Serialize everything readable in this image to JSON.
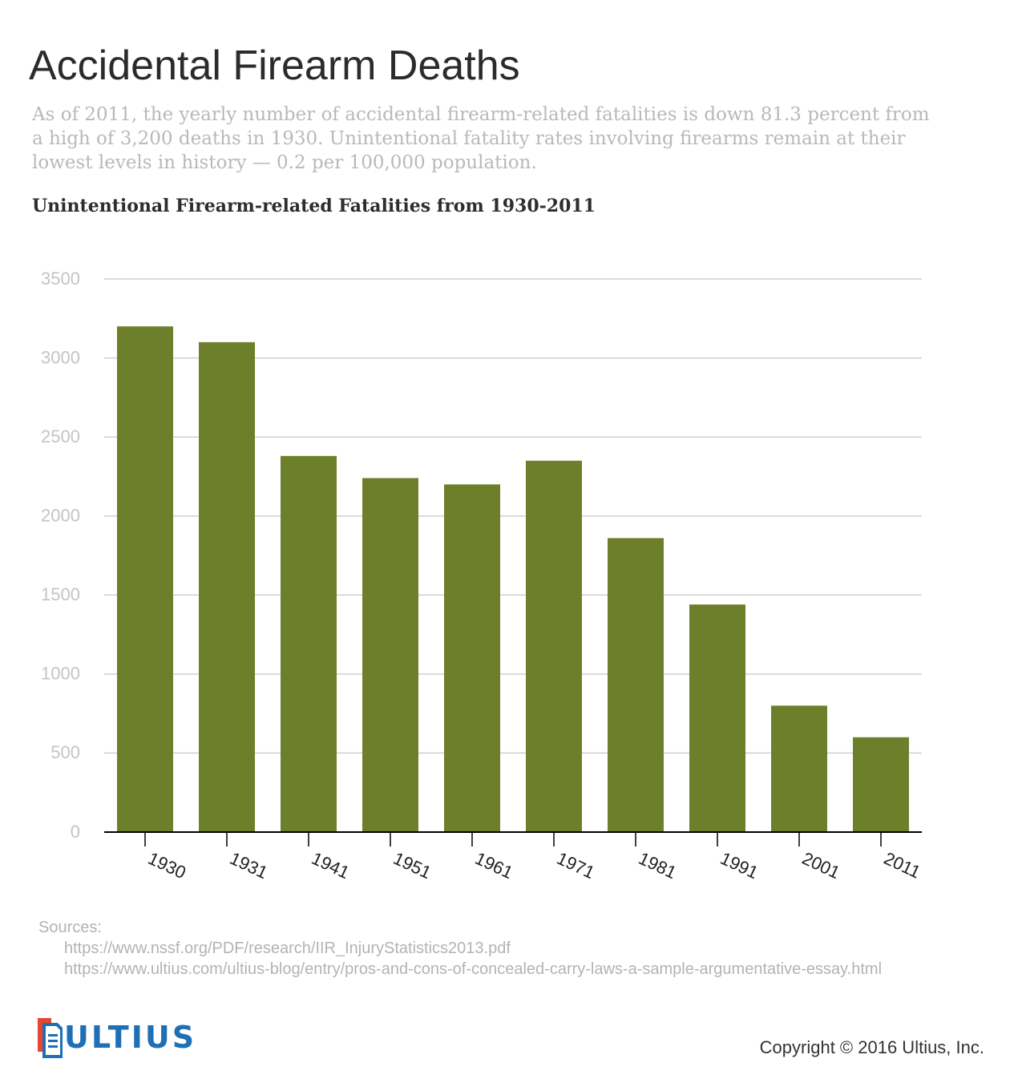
{
  "header": {
    "title": "Accidental Firearm Deaths",
    "subtitle": "As of 2011, the yearly number of accidental firearm-related fatalities is down 81.3 percent from a high of 3,200 deaths in 1930. Unintentional fatality rates involving firearms remain at their lowest levels in history — 0.2 per 100,000 population."
  },
  "chart_data": {
    "type": "bar",
    "title": "Unintentional Firearm-related Fatalities from 1930-2011",
    "xlabel": "",
    "ylabel": "",
    "categories": [
      "1930",
      "1931",
      "1941",
      "1951",
      "1961",
      "1971",
      "1981",
      "1991",
      "2001",
      "2011"
    ],
    "values": [
      3200,
      3100,
      2380,
      2240,
      2200,
      2350,
      1860,
      1440,
      800,
      600
    ],
    "ylim": [
      0,
      3500
    ],
    "yticks": [
      0,
      500,
      1000,
      1500,
      2000,
      2500,
      3000,
      3500
    ],
    "grid": true,
    "legend": "none",
    "bar_color": "#6e7f2c"
  },
  "sources": {
    "label": "Sources:",
    "urls": [
      "https://www.nssf.org/PDF/research/IIR_InjuryStatistics2013.pdf",
      "https://www.ultius.com/ultius-blog/entry/pros-and-cons-of-concealed-carry-laws-a-sample-argumentative-essay.html"
    ]
  },
  "footer": {
    "logo_text": "ULTIUS",
    "logo_color": "#1f6fb7",
    "logo_accent": "#e8462e",
    "copyright": "Copyright © 2016 Ultius, Inc."
  }
}
